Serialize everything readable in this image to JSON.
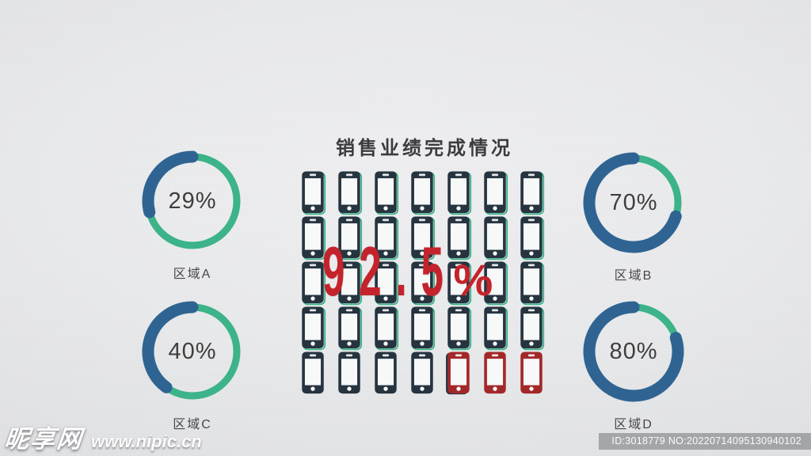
{
  "title": "销售业绩完成情况",
  "overall": {
    "display_value": "92.5",
    "percent_sign": "%"
  },
  "regions": [
    {
      "id": "A",
      "label": "区域A",
      "percent": 29,
      "display": "29%"
    },
    {
      "id": "B",
      "label": "区域B",
      "percent": 70,
      "display": "70%"
    },
    {
      "id": "C",
      "label": "区域C",
      "percent": 40,
      "display": "40%"
    },
    {
      "id": "D",
      "label": "区域D",
      "percent": 80,
      "display": "80%"
    }
  ],
  "phone_grid": {
    "rows": 5,
    "columns": 7,
    "total_icons": 35,
    "green_outlined_icons": 28,
    "plain_dark_icons": 4,
    "partial_icons": 1,
    "red_icons": 2,
    "icon": "smartphone-icon"
  },
  "colors": {
    "ring_green": "#3cb389",
    "arc_blue": "#2f6492",
    "phone_navy": "#263440",
    "phone_red": "#a3282a",
    "accent_red": "#c5232b",
    "title_text": "#3b3b3d",
    "label_text": "#474747"
  },
  "watermark": {
    "site_name": "昵享网",
    "site_url": "www.nipic.cn"
  },
  "id_bar": {
    "text": "ID:3018779 NO:20220714095130940102"
  },
  "chart_data": [
    {
      "type": "pie",
      "subtype": "donut-gauges",
      "title": "销售业绩完成情况",
      "units": "%",
      "legend_position": "none",
      "series": [
        {
          "name": "区域A",
          "value": 29
        },
        {
          "name": "区域B",
          "value": 70
        },
        {
          "name": "区域C",
          "value": 40
        },
        {
          "name": "区域D",
          "value": 80
        }
      ],
      "note": "four independent donut gauges; blue arc = completed share (counterclockwise from top), green ring = remainder, percent label in center"
    },
    {
      "type": "pictogram",
      "icon": "smartphone",
      "grid": {
        "rows": 5,
        "columns": 7
      },
      "total_icons": 35,
      "value_percent": 92.5,
      "filled_icons": 32,
      "partial_icons": 1,
      "empty_icons": 2,
      "annotation": "92.5%",
      "note": "filled phones dark navy (rows 1-4 with green outline), empty phones red at end of last row"
    }
  ]
}
